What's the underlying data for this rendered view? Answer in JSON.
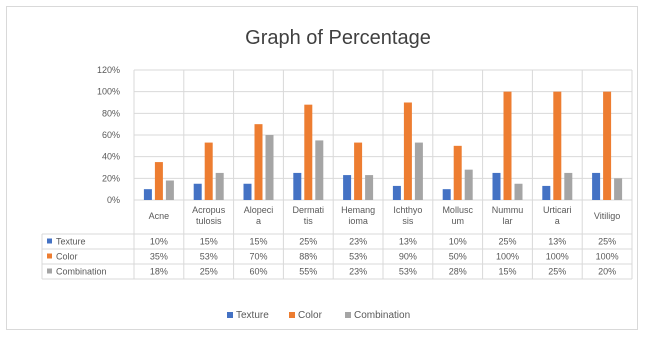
{
  "chart_data": {
    "type": "bar",
    "title": "Graph of Percentage",
    "categories": [
      [
        "Acne"
      ],
      [
        "Acropus",
        "tulosis"
      ],
      [
        "Alopeci",
        "a"
      ],
      [
        "Dermati",
        "tis"
      ],
      [
        "Hemang",
        "ioma"
      ],
      [
        "Ichthyo",
        "sis"
      ],
      [
        "Mollusc",
        "um"
      ],
      [
        "Nummu",
        "lar"
      ],
      [
        "Urticari",
        "a"
      ],
      [
        "Vitiligo"
      ]
    ],
    "yticks": [
      "0%",
      "20%",
      "40%",
      "60%",
      "80%",
      "100%",
      "120%"
    ],
    "ylim": [
      0,
      120
    ],
    "grid": true,
    "legend_position": "bottom",
    "data_table": true,
    "series": [
      {
        "name": "Texture",
        "color": "#4472c4",
        "values": [
          10,
          15,
          15,
          25,
          23,
          13,
          10,
          25,
          13,
          25
        ],
        "labels": [
          "10%",
          "15%",
          "15%",
          "25%",
          "23%",
          "13%",
          "10%",
          "25%",
          "13%",
          "25%"
        ]
      },
      {
        "name": "Color",
        "color": "#ed7d31",
        "values": [
          35,
          53,
          70,
          88,
          53,
          90,
          50,
          100,
          100,
          100
        ],
        "labels": [
          "35%",
          "53%",
          "70%",
          "88%",
          "53%",
          "90%",
          "50%",
          "100%",
          "100%",
          "100%"
        ]
      },
      {
        "name": "Combination",
        "color": "#a5a5a5",
        "values": [
          18,
          25,
          60,
          55,
          23,
          53,
          28,
          15,
          25,
          20
        ],
        "labels": [
          "18%",
          "25%",
          "60%",
          "55%",
          "23%",
          "53%",
          "28%",
          "15%",
          "25%",
          "20%"
        ]
      }
    ]
  }
}
